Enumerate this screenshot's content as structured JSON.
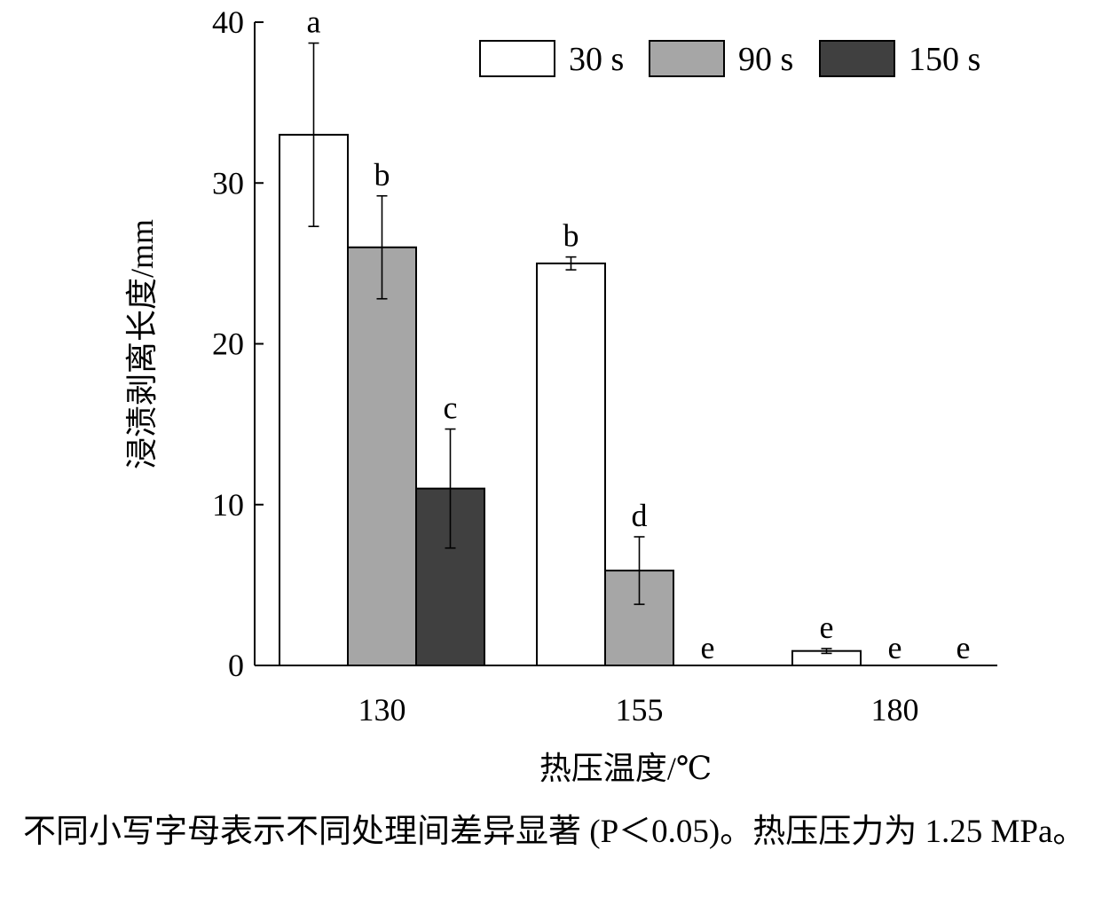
{
  "chart_data": {
    "type": "bar",
    "categories": [
      "130",
      "155",
      "180"
    ],
    "xlabel": "热压温度/℃",
    "ylabel": "浸渍剥离长度/mm",
    "ylim": [
      0,
      40
    ],
    "yticks": [
      0,
      10,
      20,
      30,
      40
    ],
    "legend_position": "top-right",
    "grid": false,
    "series": [
      {
        "name": "30 s",
        "color": "#ffffff",
        "values": [
          33.0,
          25.0,
          0.9
        ],
        "errors": [
          5.7,
          0.4,
          0.15
        ],
        "labels": [
          "a",
          "b",
          "e"
        ]
      },
      {
        "name": "90 s",
        "color": "#a6a6a6",
        "values": [
          26.0,
          5.9,
          0
        ],
        "errors": [
          3.2,
          2.1,
          0
        ],
        "labels": [
          "b",
          "d",
          "e"
        ]
      },
      {
        "name": "150 s",
        "color": "#404040",
        "values": [
          11.0,
          0,
          0
        ],
        "errors": [
          3.7,
          0,
          0
        ],
        "labels": [
          "c",
          "e",
          "e"
        ]
      }
    ]
  },
  "caption": "不同小写字母表示不同处理间差异显著 (P＜0.05)。热压压力为 1.25 MPa。"
}
